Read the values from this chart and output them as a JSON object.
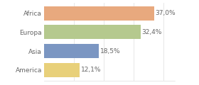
{
  "categories": [
    "Africa",
    "Europa",
    "Asia",
    "America"
  ],
  "values": [
    37.0,
    32.4,
    18.5,
    12.1
  ],
  "labels": [
    "37,0%",
    "32,4%",
    "18,5%",
    "12,1%"
  ],
  "bar_colors": [
    "#e8a97e",
    "#b5c98e",
    "#7b96c2",
    "#e8d07a"
  ],
  "background_color": "#ffffff",
  "xlim": [
    0,
    44
  ],
  "bar_height": 0.75,
  "label_fontsize": 6.5,
  "tick_fontsize": 6.5,
  "grid_color": "#dddddd",
  "text_color": "#666666"
}
